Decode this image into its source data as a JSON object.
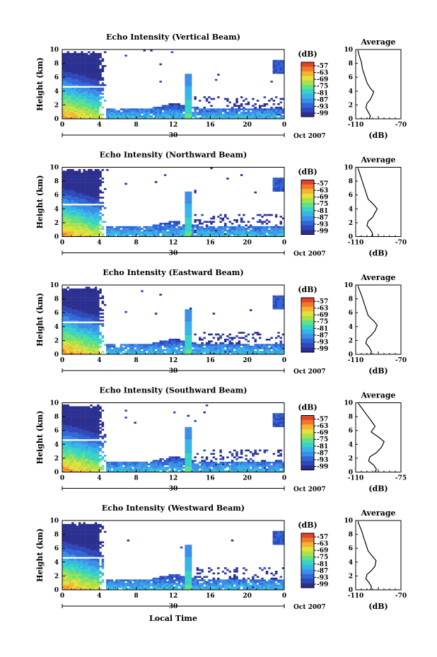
{
  "figure": {
    "date_label": "Oct 2007",
    "day_label": "30",
    "x_axis_label": "Local Time",
    "y_axis_label": "Height (km)",
    "colorbar_unit": "(dB)",
    "profile_title": "Average",
    "profile_xlabel": "(dB)"
  },
  "palette": [
    "#2b2f8f",
    "#2f47b8",
    "#2f67d8",
    "#3b8ee8",
    "#36b4e6",
    "#37d2c8",
    "#5fe08a",
    "#a8e24a",
    "#e6e03a",
    "#f5b234",
    "#ee7a2a",
    "#e0442a"
  ],
  "chart_data": [
    {
      "type": "heatmap",
      "title": "Echo Intensity (Vertical Beam)",
      "x_ticks": [
        "0",
        "4",
        "8",
        "12",
        "16",
        "20",
        "0"
      ],
      "y_ticks": [
        "0",
        "2",
        "4",
        "6",
        "8",
        "10"
      ],
      "xlim": [
        0,
        24
      ],
      "ylim": [
        0,
        10
      ],
      "colorbar_ticks": [
        "-57",
        "-63",
        "-69",
        "-75",
        "-81",
        "-87",
        "-93",
        "-99"
      ],
      "profile": {
        "xlim": [
          -110,
          -70
        ],
        "x_ticks": [
          "-110",
          "-70"
        ],
        "y_ticks": [
          "0",
          "2",
          "4",
          "6",
          "8",
          "10"
        ],
        "points": [
          [
            -98,
            0
          ],
          [
            -97,
            0.4
          ],
          [
            -99,
            1
          ],
          [
            -101,
            1.6
          ],
          [
            -100,
            2.2
          ],
          [
            -97,
            2.8
          ],
          [
            -95,
            3.5
          ],
          [
            -94,
            3.9
          ],
          [
            -97,
            4.4
          ],
          [
            -100,
            5.2
          ],
          [
            -102,
            6.2
          ],
          [
            -104,
            7.2
          ],
          [
            -105,
            8.2
          ],
          [
            -107,
            9.2
          ],
          [
            -108,
            9.9
          ]
        ]
      }
    },
    {
      "type": "heatmap",
      "title": "Echo Intensity (Northward Beam)",
      "x_ticks": [
        "0",
        "4",
        "8",
        "12",
        "16",
        "20",
        "0"
      ],
      "y_ticks": [
        "0",
        "2",
        "4",
        "6",
        "8",
        "10"
      ],
      "xlim": [
        0,
        24
      ],
      "ylim": [
        0,
        10
      ],
      "colorbar_ticks": [
        "-57",
        "-63",
        "-69",
        "-75",
        "-81",
        "-87",
        "-93",
        "-99"
      ],
      "profile": {
        "xlim": [
          -110,
          -70
        ],
        "x_ticks": [
          "-110",
          "-70"
        ],
        "y_ticks": [
          "0",
          "2",
          "4",
          "6",
          "8",
          "10"
        ],
        "points": [
          [
            -96,
            0
          ],
          [
            -95,
            0.4
          ],
          [
            -97,
            1
          ],
          [
            -100,
            1.6
          ],
          [
            -99,
            2.2
          ],
          [
            -95,
            2.8
          ],
          [
            -93,
            3.4
          ],
          [
            -91,
            4
          ],
          [
            -94,
            4.6
          ],
          [
            -99,
            5.4
          ],
          [
            -101,
            6.4
          ],
          [
            -103,
            7.4
          ],
          [
            -105,
            8.4
          ],
          [
            -107,
            9.4
          ],
          [
            -108,
            9.9
          ]
        ]
      }
    },
    {
      "type": "heatmap",
      "title": "Echo Intensity (Eastward Beam)",
      "x_ticks": [
        "0",
        "4",
        "8",
        "12",
        "16",
        "20",
        "0"
      ],
      "y_ticks": [
        "0",
        "2",
        "4",
        "6",
        "8",
        "10"
      ],
      "xlim": [
        0,
        24
      ],
      "ylim": [
        0,
        10
      ],
      "colorbar_ticks": [
        "-57",
        "-63",
        "-69",
        "-75",
        "-81",
        "-87",
        "-93",
        "-99"
      ],
      "profile": {
        "xlim": [
          -110,
          -70
        ],
        "x_ticks": [
          "-110",
          "-70"
        ],
        "y_ticks": [
          "0",
          "2",
          "4",
          "6",
          "8",
          "10"
        ],
        "points": [
          [
            -97,
            0
          ],
          [
            -96,
            0.4
          ],
          [
            -98,
            1
          ],
          [
            -101,
            1.6
          ],
          [
            -100,
            2.2
          ],
          [
            -96,
            2.8
          ],
          [
            -93,
            3.4
          ],
          [
            -91,
            4.2
          ],
          [
            -94,
            4.8
          ],
          [
            -99,
            5.6
          ],
          [
            -101,
            6.6
          ],
          [
            -103,
            7.6
          ],
          [
            -105,
            8.6
          ],
          [
            -107,
            9.4
          ],
          [
            -108,
            9.9
          ]
        ]
      }
    },
    {
      "type": "heatmap",
      "title": "Echo Intensity (Southward Beam)",
      "x_ticks": [
        "0",
        "4",
        "8",
        "12",
        "16",
        "20",
        "0"
      ],
      "y_ticks": [
        "0",
        "2",
        "4",
        "6",
        "8",
        "10"
      ],
      "xlim": [
        0,
        24
      ],
      "ylim": [
        0,
        10
      ],
      "colorbar_ticks": [
        "-57",
        "-63",
        "-69",
        "-75",
        "-81",
        "-87",
        "-93",
        "-99"
      ],
      "profile": {
        "xlim": [
          -110,
          -75
        ],
        "x_ticks": [
          "-110",
          "-75"
        ],
        "y_ticks": [
          "0",
          "2",
          "4",
          "6",
          "8",
          "10"
        ],
        "points": [
          [
            -95,
            0
          ],
          [
            -94,
            0.4
          ],
          [
            -96,
            1
          ],
          [
            -100,
            1.6
          ],
          [
            -99,
            2.2
          ],
          [
            -94,
            2.8
          ],
          [
            -90,
            3.6
          ],
          [
            -88,
            4.4
          ],
          [
            -92,
            5
          ],
          [
            -98,
            5.8
          ],
          [
            -95,
            6.6
          ],
          [
            -98,
            7.4
          ],
          [
            -102,
            8.4
          ],
          [
            -106,
            9.4
          ],
          [
            -108,
            9.9
          ]
        ]
      }
    },
    {
      "type": "heatmap",
      "title": "Echo Intensity (Westward Beam)",
      "x_ticks": [
        "0",
        "4",
        "8",
        "12",
        "16",
        "20",
        "0"
      ],
      "y_ticks": [
        "0",
        "2",
        "4",
        "6",
        "8",
        "10"
      ],
      "xlim": [
        0,
        24
      ],
      "ylim": [
        0,
        10
      ],
      "colorbar_ticks": [
        "-57",
        "-63",
        "-69",
        "-75",
        "-81",
        "-87",
        "-93",
        "-99"
      ],
      "profile": {
        "xlim": [
          -110,
          -70
        ],
        "x_ticks": [
          "-110",
          "-70"
        ],
        "y_ticks": [
          "0",
          "2",
          "4",
          "6",
          "8",
          "10"
        ],
        "points": [
          [
            -97,
            0
          ],
          [
            -96,
            0.4
          ],
          [
            -98,
            1
          ],
          [
            -101,
            1.6
          ],
          [
            -100,
            2.2
          ],
          [
            -96,
            2.8
          ],
          [
            -93,
            3.4
          ],
          [
            -92,
            4.2
          ],
          [
            -95,
            4.8
          ],
          [
            -99,
            5.6
          ],
          [
            -101,
            6.6
          ],
          [
            -103,
            7.6
          ],
          [
            -105,
            8.6
          ],
          [
            -107,
            9.4
          ],
          [
            -108,
            9.9
          ]
        ]
      }
    }
  ]
}
